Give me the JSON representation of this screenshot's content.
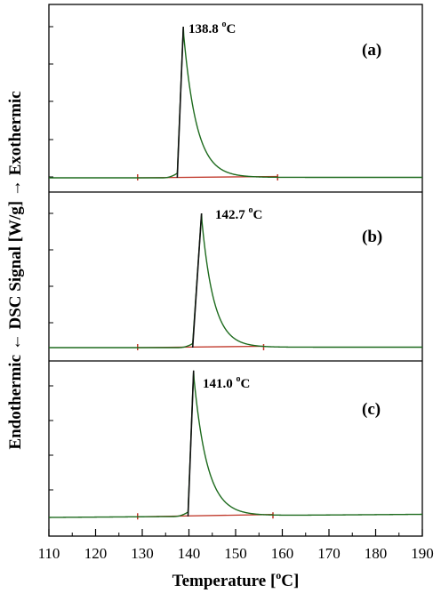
{
  "chart_data": {
    "type": "line",
    "xlabel": "Temperature [°C]",
    "xlabel_main": "Temperature [",
    "xlabel_unit": "C]",
    "ylabel": "Endothermic ← DSC Signal [W/g] → Exothermic",
    "xlim": [
      110,
      190
    ],
    "xticks": [
      110,
      120,
      130,
      140,
      150,
      160,
      170,
      180,
      190
    ],
    "xtick_labels": [
      "110",
      "120",
      "130",
      "140",
      "150",
      "160",
      "170",
      "180",
      "190"
    ],
    "yaxis_tick_labels": false,
    "colors": {
      "curve": "#1e6b1e",
      "leading_edge": "#111111",
      "baseline": "#c0392b",
      "axis": "#000000"
    },
    "panels": [
      {
        "label": "(a)",
        "peak_label": "138.8 °C",
        "peak_label_main": "138.8 ",
        "peak_label_unit": "C",
        "onset": 137.5,
        "peak": 138.8,
        "baseline_markers": [
          129,
          159
        ],
        "decay": 2.8
      },
      {
        "label": "(b)",
        "peak_label": "142.7 °C",
        "peak_label_main": "142.7 ",
        "peak_label_unit": "C",
        "onset": 140.8,
        "peak": 142.7,
        "baseline_markers": [
          129,
          156
        ],
        "decay": 2.6
      },
      {
        "label": "(c)",
        "peak_label": "141.0 °C",
        "peak_label_main": "141.0 ",
        "peak_label_unit": "C",
        "onset": 139.8,
        "peak": 141.0,
        "baseline_markers": [
          129,
          158
        ],
        "decay": 2.9
      }
    ]
  }
}
